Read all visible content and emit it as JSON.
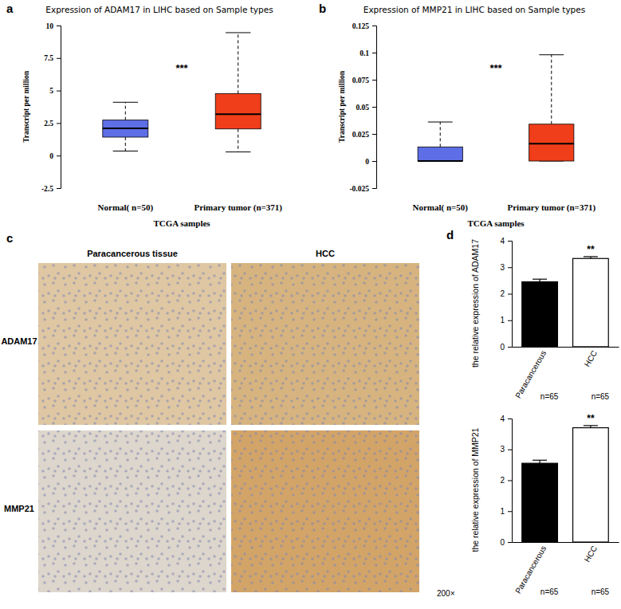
{
  "chart_data": [
    {
      "type": "box",
      "panel": "a",
      "title": "Expression of ADAM17 in LIHC based on Sample types",
      "y_label": "Transcript per million",
      "x_label": "TCGA samples",
      "annotation": "***",
      "categories": [
        "Normal( n=50)",
        "Primary tumor (n=371)"
      ],
      "boxes": [
        {
          "min": 0.35,
          "q1": 1.42,
          "median": 2.1,
          "q3": 2.73,
          "max": 4.1
        },
        {
          "min": 0.28,
          "q1": 2.05,
          "median": 3.18,
          "q3": 4.77,
          "max": 9.45
        }
      ],
      "colors": [
        "#5e6ee6",
        "#f03e1a"
      ],
      "ylim": [
        -2.5,
        10
      ],
      "yticks": [
        -2.5,
        0,
        2.5,
        5,
        7.5,
        10
      ]
    },
    {
      "type": "box",
      "panel": "b",
      "title": "Expression of MMP21 in LIHC based on Sample types",
      "y_label": "Transcript per million",
      "x_label": "TCGA samples",
      "annotation": "***",
      "categories": [
        "Normal( n=50)",
        "Primary tumor (n=371)"
      ],
      "boxes": [
        {
          "min": 0,
          "q1": 0,
          "median": 0,
          "q3": 0.013,
          "max": 0.036
        },
        {
          "min": 0,
          "q1": 0,
          "median": 0.016,
          "q3": 0.034,
          "max": 0.098
        }
      ],
      "colors": [
        "#5e6ee6",
        "#f03e1a"
      ],
      "ylim": [
        -0.025,
        0.125
      ],
      "yticks": [
        -0.025,
        0,
        0.025,
        0.05,
        0.075,
        0.1,
        0.125
      ]
    },
    {
      "type": "bar",
      "panel": "d",
      "y_label": "the relative expression of ADAM17",
      "categories": [
        "Paracancerous",
        "HCC"
      ],
      "n_labels": [
        "n=65",
        "n=65"
      ],
      "annotation": "**",
      "values": [
        2.45,
        3.33
      ],
      "errors": [
        0.1,
        0.07
      ],
      "colors": [
        "#000000",
        "#ffffff"
      ],
      "ylim": [
        0,
        4
      ],
      "yticks": [
        0,
        1,
        2,
        3,
        4
      ]
    },
    {
      "type": "bar",
      "y_label": "the relative expression of MMP21",
      "categories": [
        "Paracancerous",
        "HCC"
      ],
      "n_labels": [
        "n=65",
        "n=65"
      ],
      "annotation": "**",
      "values": [
        2.55,
        3.7
      ],
      "errors": [
        0.1,
        0.07
      ],
      "colors": [
        "#000000",
        "#ffffff"
      ],
      "ylim": [
        0,
        4
      ],
      "yticks": [
        0,
        1,
        2,
        3,
        4
      ]
    }
  ],
  "figure": {
    "panel": "c",
    "columns": [
      "Paracancerous tissue",
      "HCC"
    ],
    "rows": [
      "ADAM17",
      "MMP21"
    ],
    "magnification": "200×"
  }
}
